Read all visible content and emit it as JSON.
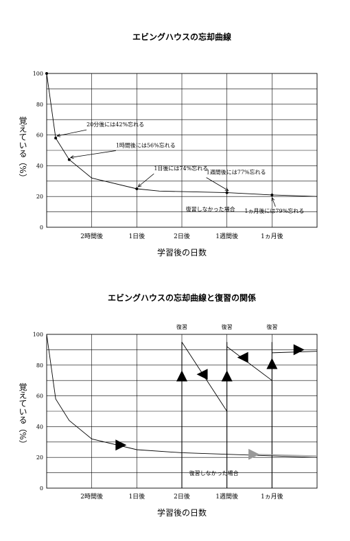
{
  "chart_data": [
    {
      "type": "line",
      "title": "エビングハウスの忘却曲線",
      "ylabel": "覚えている（%）",
      "xlabel": "学習後の日数",
      "ylim": [
        0,
        100
      ],
      "yticks": [
        0,
        20,
        40,
        60,
        80,
        100
      ],
      "x_categories": [
        "2時間後",
        "1日後",
        "2日後",
        "1週間後",
        "1ヵ月後"
      ],
      "grid": true,
      "series": [
        {
          "points": [
            [
              0,
              100
            ],
            [
              0.2,
              58
            ],
            [
              0.5,
              44
            ],
            [
              1.0,
              32
            ],
            [
              2.0,
              25
            ],
            [
              2.5,
              23.5
            ],
            [
              4.0,
              22.5
            ],
            [
              5.0,
              21
            ],
            [
              6.0,
              20
            ]
          ]
        }
      ],
      "annotations": [
        {
          "text": "20分後には42%忘れる",
          "x": 0.2,
          "y": 58
        },
        {
          "text": "1時間後には56%忘れる",
          "x": 0.5,
          "y": 44
        },
        {
          "text": "1日後には74%忘れる",
          "x": 2.0,
          "y": 25
        },
        {
          "text": "1週間後には77%忘れる",
          "x": 4.0,
          "y": 22.5
        },
        {
          "text": "1ヵ月後には79%忘れる",
          "x": 5.0,
          "y": 21
        },
        {
          "text": "復習しなかった場合",
          "x": 4.0,
          "y": 15
        }
      ]
    },
    {
      "type": "line",
      "title": "エビングハウスの忘却曲線と復習の関係",
      "ylabel": "覚えている（%）",
      "xlabel": "学習後の日数",
      "ylim": [
        0,
        100
      ],
      "yticks": [
        0,
        20,
        40,
        60,
        80,
        100
      ],
      "x_categories": [
        "2時間後",
        "1日後",
        "2日後",
        "1週間後",
        "1ヵ月後"
      ],
      "grid": true,
      "series": [
        {
          "name": "復習しなかった場合",
          "points": [
            [
              0,
              100
            ],
            [
              0.2,
              58
            ],
            [
              0.5,
              44
            ],
            [
              1.0,
              32
            ],
            [
              2.0,
              25
            ],
            [
              3.0,
              23
            ],
            [
              4.0,
              22
            ],
            [
              5.0,
              21
            ],
            [
              6.0,
              20
            ]
          ]
        },
        {
          "points": [
            [
              3.0,
              95
            ],
            [
              4.0,
              50
            ]
          ]
        },
        {
          "points": [
            [
              4.0,
              92
            ],
            [
              5.0,
              70
            ]
          ]
        },
        {
          "points": [
            [
              5.0,
              88
            ],
            [
              6.0,
              89
            ]
          ]
        }
      ],
      "review_labels": [
        {
          "text": "復習",
          "x": 3.0
        },
        {
          "text": "復習",
          "x": 4.0
        },
        {
          "text": "復習",
          "x": 5.0
        }
      ],
      "review_lines": [
        3.0,
        4.0,
        5.0
      ],
      "markers": [
        {
          "x": 1.65,
          "y": 28,
          "dir": "right",
          "color": "#000000"
        },
        {
          "x": 3.0,
          "y": 73,
          "dir": "up",
          "color": "#000000"
        },
        {
          "x": 3.45,
          "y": 74,
          "dir": "left",
          "color": "#000000"
        },
        {
          "x": 4.0,
          "y": 73,
          "dir": "up",
          "color": "#000000"
        },
        {
          "x": 4.35,
          "y": 85,
          "dir": "left",
          "color": "#000000"
        },
        {
          "x": 5.0,
          "y": 81,
          "dir": "up",
          "color": "#000000"
        },
        {
          "x": 5.6,
          "y": 90,
          "dir": "right",
          "color": "#000000"
        },
        {
          "x": 4.6,
          "y": 22,
          "dir": "right",
          "color": "#999999"
        }
      ],
      "annotations": [
        {
          "text": "復習しなかった場合",
          "x": 4.0,
          "y": 16
        }
      ]
    }
  ]
}
